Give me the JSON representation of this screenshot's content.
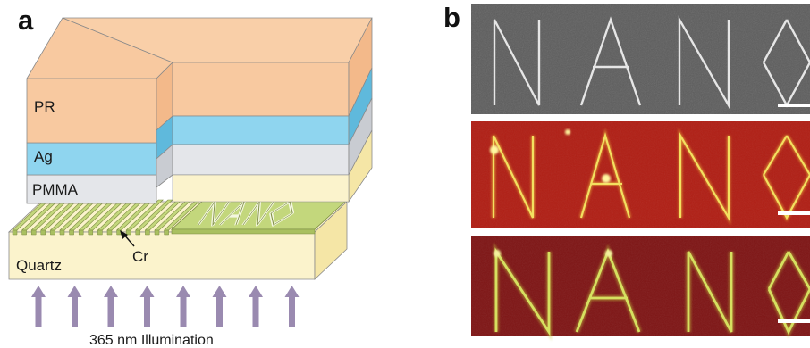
{
  "panel_a": {
    "letter": "a",
    "layers": {
      "pr": "PR",
      "ag": "Ag",
      "pmma": "PMMA",
      "quartz": "Quartz"
    },
    "cr_label": "Cr",
    "pattern_text": "NANO",
    "illumination_label": "365 nm Illumination",
    "colors": {
      "pr": "#f8c9a0",
      "ag": "#8fd5ef",
      "pmma": "#e4e6ea",
      "quartz": "#fbf3cc",
      "cr": "#c3d77c",
      "arrow": "#9a8ab0"
    }
  },
  "panel_b": {
    "letter": "b",
    "images": [
      {
        "word": "NANO",
        "style": "grayscale-sem",
        "colors": {
          "bg": "#5a5a5a",
          "stroke": "#e6e6e6"
        }
      },
      {
        "word": "NANO",
        "style": "fluorescence-red",
        "colors": {
          "bg": "#b01e14",
          "stroke": "#f3e060"
        }
      },
      {
        "word": "NANO",
        "style": "fluorescence-dark-red",
        "colors": {
          "bg": "#7e1414",
          "stroke": "#d6e060"
        }
      }
    ]
  }
}
